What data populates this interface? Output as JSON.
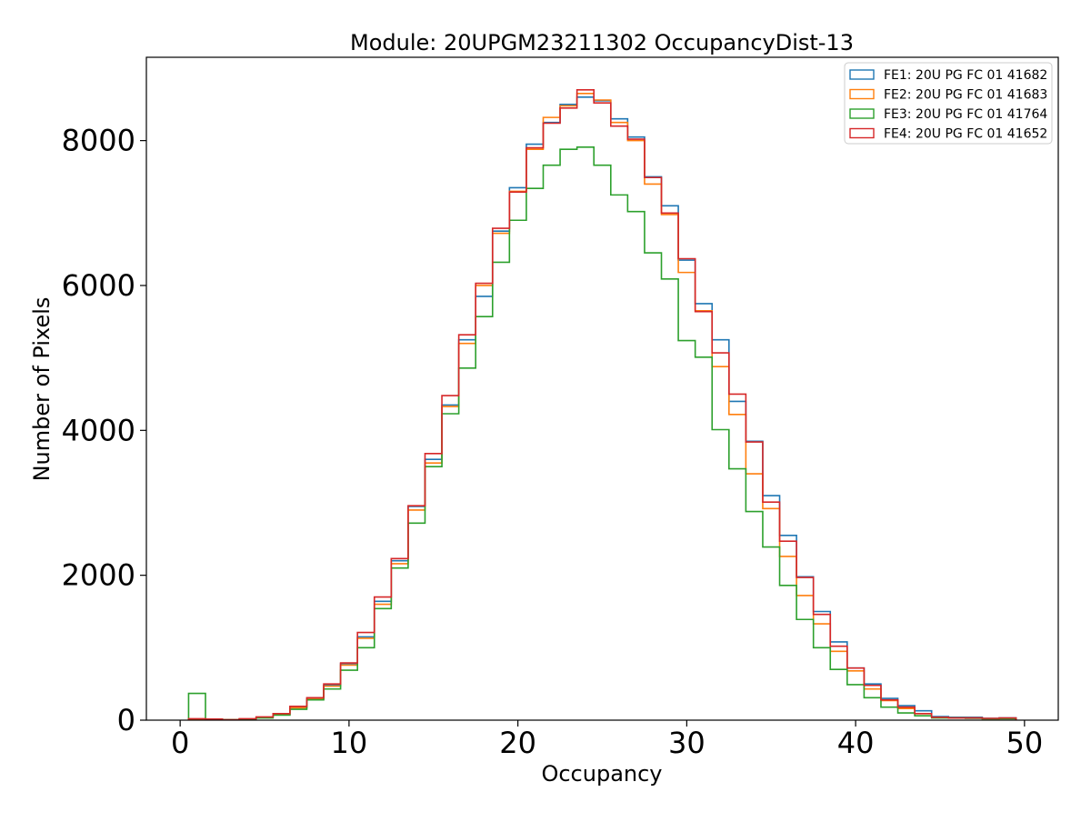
{
  "chart_data": {
    "type": "histogram",
    "title": "Module: 20UPGM23211302 OccupancyDist-13",
    "xlabel": "Occupancy",
    "ylabel": "Number of Pixels",
    "xlim": [
      -2,
      52
    ],
    "ylim": [
      0,
      9150
    ],
    "xticks": [
      0,
      10,
      20,
      30,
      40,
      50
    ],
    "yticks": [
      0,
      2000,
      4000,
      6000,
      8000
    ],
    "xtick_labels": [
      "0",
      "10",
      "20",
      "30",
      "40",
      "50"
    ],
    "ytick_labels": [
      "0",
      "2000",
      "4000",
      "6000",
      "8000"
    ],
    "legend_position": "upper right",
    "bin_edges": [
      0.5,
      1.5,
      2.5,
      3.5,
      4.5,
      5.5,
      6.5,
      7.5,
      8.5,
      9.5,
      10.5,
      11.5,
      12.5,
      13.5,
      14.5,
      15.5,
      16.5,
      17.5,
      18.5,
      19.5,
      20.5,
      21.5,
      22.5,
      23.5,
      24.5,
      25.5,
      26.5,
      27.5,
      28.5,
      29.5,
      30.5,
      31.5,
      32.5,
      33.5,
      34.5,
      35.5,
      36.5,
      37.5,
      38.5,
      39.5,
      40.5,
      41.5,
      42.5,
      43.5,
      44.5,
      45.5,
      46.5,
      47.5,
      48.5,
      49.5
    ],
    "series": [
      {
        "name": "FE1: 20U PG FC 01 41682",
        "color": "#1f77b4",
        "values": [
          15,
          10,
          5,
          15,
          40,
          80,
          170,
          300,
          480,
          780,
          1150,
          1640,
          2200,
          2950,
          3600,
          4350,
          5250,
          5850,
          6750,
          7350,
          7950,
          8250,
          8500,
          8600,
          8550,
          8300,
          8050,
          7500,
          7100,
          6350,
          5750,
          5250,
          4400,
          3850,
          3100,
          2550,
          1980,
          1500,
          1080,
          720,
          500,
          300,
          200,
          130,
          50,
          40,
          40,
          25,
          30
        ]
      },
      {
        "name": "FE2: 20U PG FC 01 41683",
        "color": "#ff7f0e",
        "values": [
          15,
          10,
          5,
          15,
          40,
          80,
          170,
          290,
          470,
          760,
          1130,
          1600,
          2160,
          2900,
          3550,
          4330,
          5200,
          6000,
          6720,
          7300,
          7880,
          8320,
          8480,
          8650,
          8560,
          8250,
          8000,
          7400,
          6980,
          6180,
          5650,
          4880,
          4220,
          3400,
          2920,
          2260,
          1720,
          1330,
          950,
          680,
          430,
          270,
          160,
          90,
          40,
          30,
          30,
          20,
          25
        ]
      },
      {
        "name": "FE3: 20U PG FC 01 41764",
        "color": "#2ca02c",
        "values": [
          370,
          15,
          5,
          10,
          30,
          70,
          150,
          280,
          430,
          690,
          1000,
          1540,
          2100,
          2720,
          3500,
          4230,
          4860,
          5570,
          6320,
          6900,
          7340,
          7660,
          7880,
          7910,
          7660,
          7250,
          7020,
          6450,
          6090,
          5240,
          5010,
          4010,
          3470,
          2880,
          2390,
          1860,
          1390,
          1000,
          700,
          490,
          310,
          180,
          100,
          60,
          30,
          30,
          25,
          20,
          20
        ]
      },
      {
        "name": "FE4: 20U PG FC 01 41652",
        "color": "#d62728",
        "values": [
          20,
          15,
          5,
          20,
          45,
          90,
          190,
          310,
          500,
          790,
          1210,
          1700,
          2230,
          2960,
          3680,
          4480,
          5320,
          6030,
          6790,
          7290,
          7900,
          8240,
          8450,
          8700,
          8520,
          8200,
          8020,
          7490,
          7000,
          6370,
          5640,
          5070,
          4500,
          3840,
          3010,
          2470,
          1970,
          1460,
          1020,
          720,
          480,
          280,
          180,
          90,
          40,
          30,
          30,
          25,
          30
        ]
      }
    ]
  }
}
